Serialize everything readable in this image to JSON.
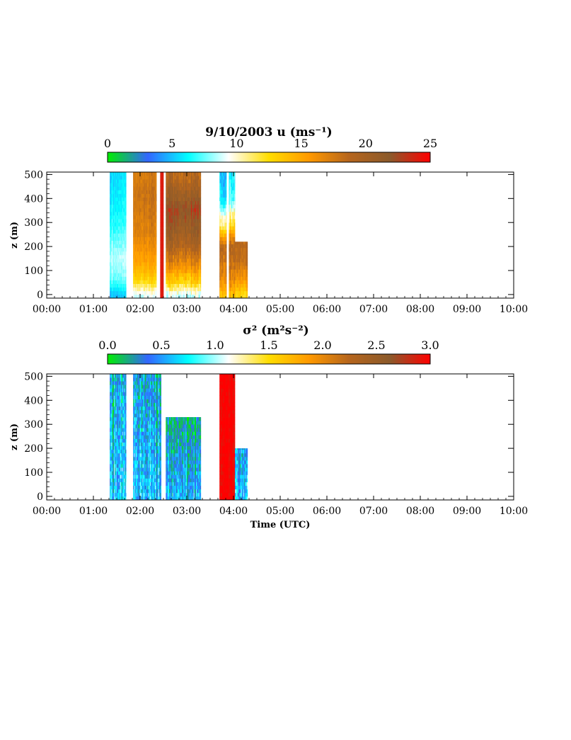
{
  "chart_data": [
    {
      "type": "heatmap",
      "title": "9/10/2003  u   (ms⁻¹)",
      "colorbar": {
        "min": 0,
        "max": 25,
        "tick_labels": [
          "0",
          "5",
          "10",
          "15",
          "20",
          "25"
        ],
        "tick_values": [
          0,
          5,
          10,
          15,
          20,
          25
        ],
        "colors": [
          "#00ee00",
          "#3366ff",
          "#00ffff",
          "#ffffff",
          "#ffdd00",
          "#ff9900",
          "#b5651d",
          "#8b5a2b",
          "#ff0000"
        ]
      },
      "xlabel": "",
      "ylabel": "z (m)",
      "x_ticks": [
        "00:00",
        "01:00",
        "02:00",
        "03:00",
        "04:00",
        "05:00",
        "06:00",
        "07:00",
        "08:00",
        "09:00",
        "10:00"
      ],
      "y_ticks": [
        "0",
        "100",
        "200",
        "300",
        "400",
        "500"
      ],
      "xlim_hours": [
        0,
        10
      ],
      "ylim": [
        -15,
        510
      ],
      "segments": [
        {
          "t_start": 1.35,
          "t_end": 1.7,
          "top": 510,
          "profile": [
            [
              0,
              5
            ],
            [
              60,
              7.5
            ],
            [
              150,
              8.5
            ],
            [
              300,
              6.5
            ],
            [
              500,
              5.5
            ]
          ],
          "noise": 1.0
        },
        {
          "t_start": 1.85,
          "t_end": 2.35,
          "top": 510,
          "profile": [
            [
              0,
              9
            ],
            [
              50,
              12.5
            ],
            [
              120,
              15
            ],
            [
              250,
              17
            ],
            [
              400,
              18
            ],
            [
              500,
              17.5
            ]
          ],
          "noise": 1.2
        },
        {
          "t_start": 2.43,
          "t_end": 2.5,
          "top": 510,
          "profile": [
            [
              0,
              24
            ],
            [
              500,
              24
            ]
          ],
          "noise": 0.5
        },
        {
          "t_start": 2.55,
          "t_end": 3.3,
          "top": 510,
          "profile": [
            [
              0,
              9
            ],
            [
              50,
              13
            ],
            [
              120,
              16.5
            ],
            [
              220,
              20
            ],
            [
              350,
              22.5
            ],
            [
              480,
              19
            ]
          ],
          "noise": 1.8
        },
        {
          "t_start": 3.7,
          "t_end": 3.85,
          "top": 510,
          "profile": [
            [
              0,
              14
            ],
            [
              70,
              17
            ],
            [
              200,
              19
            ],
            [
              280,
              12
            ],
            [
              400,
              6
            ],
            [
              500,
              5
            ]
          ],
          "noise": 2.0
        },
        {
          "t_start": 3.9,
          "t_end": 4.03,
          "top": 510,
          "profile": [
            [
              0,
              14
            ],
            [
              70,
              17
            ],
            [
              200,
              19
            ],
            [
              280,
              13
            ],
            [
              400,
              7
            ],
            [
              500,
              6
            ]
          ],
          "noise": 2.0
        },
        {
          "t_start": 4.03,
          "t_end": 4.3,
          "top": 220,
          "profile": [
            [
              0,
              13
            ],
            [
              60,
              16
            ],
            [
              150,
              18.5
            ],
            [
              220,
              19
            ]
          ],
          "noise": 1.5
        }
      ]
    },
    {
      "type": "heatmap",
      "title": "σ² (m²s⁻²)",
      "colorbar": {
        "min": 0,
        "max": 3,
        "tick_labels": [
          "0.0",
          "0.5",
          "1.0",
          "1.5",
          "2.0",
          "2.5",
          "3.0"
        ],
        "tick_values": [
          0,
          0.5,
          1.0,
          1.5,
          2.0,
          2.5,
          3.0
        ],
        "colors": [
          "#00ee00",
          "#3366ff",
          "#00ffff",
          "#ffffff",
          "#ffdd00",
          "#ff9900",
          "#b5651d",
          "#8b5a2b",
          "#ff0000"
        ]
      },
      "xlabel": "Time (UTC)",
      "ylabel": "z (m)",
      "x_ticks": [
        "00:00",
        "01:00",
        "02:00",
        "03:00",
        "04:00",
        "05:00",
        "06:00",
        "07:00",
        "08:00",
        "09:00",
        "10:00"
      ],
      "y_ticks": [
        "0",
        "100",
        "200",
        "300",
        "400",
        "500"
      ],
      "xlim_hours": [
        0,
        10
      ],
      "ylim": [
        -15,
        510
      ],
      "segments": [
        {
          "t_start": 1.35,
          "t_end": 1.7,
          "top": 510,
          "profile": [
            [
              0,
              0.6
            ],
            [
              500,
              0.4
            ]
          ],
          "noise": 0.5
        },
        {
          "t_start": 1.85,
          "t_end": 2.45,
          "top": 510,
          "profile": [
            [
              0,
              0.6
            ],
            [
              500,
              0.35
            ]
          ],
          "noise": 0.5
        },
        {
          "t_start": 2.55,
          "t_end": 3.3,
          "top": 330,
          "profile": [
            [
              0,
              0.55
            ],
            [
              330,
              0.2
            ]
          ],
          "noise": 0.45
        },
        {
          "t_start": 3.7,
          "t_end": 4.03,
          "top": 510,
          "profile": [
            [
              0,
              3.0
            ],
            [
              500,
              3.0
            ]
          ],
          "noise": 0.2
        },
        {
          "t_start": 4.03,
          "t_end": 4.3,
          "top": 200,
          "profile": [
            [
              0,
              0.7
            ],
            [
              200,
              0.5
            ]
          ],
          "noise": 0.5
        }
      ]
    }
  ]
}
